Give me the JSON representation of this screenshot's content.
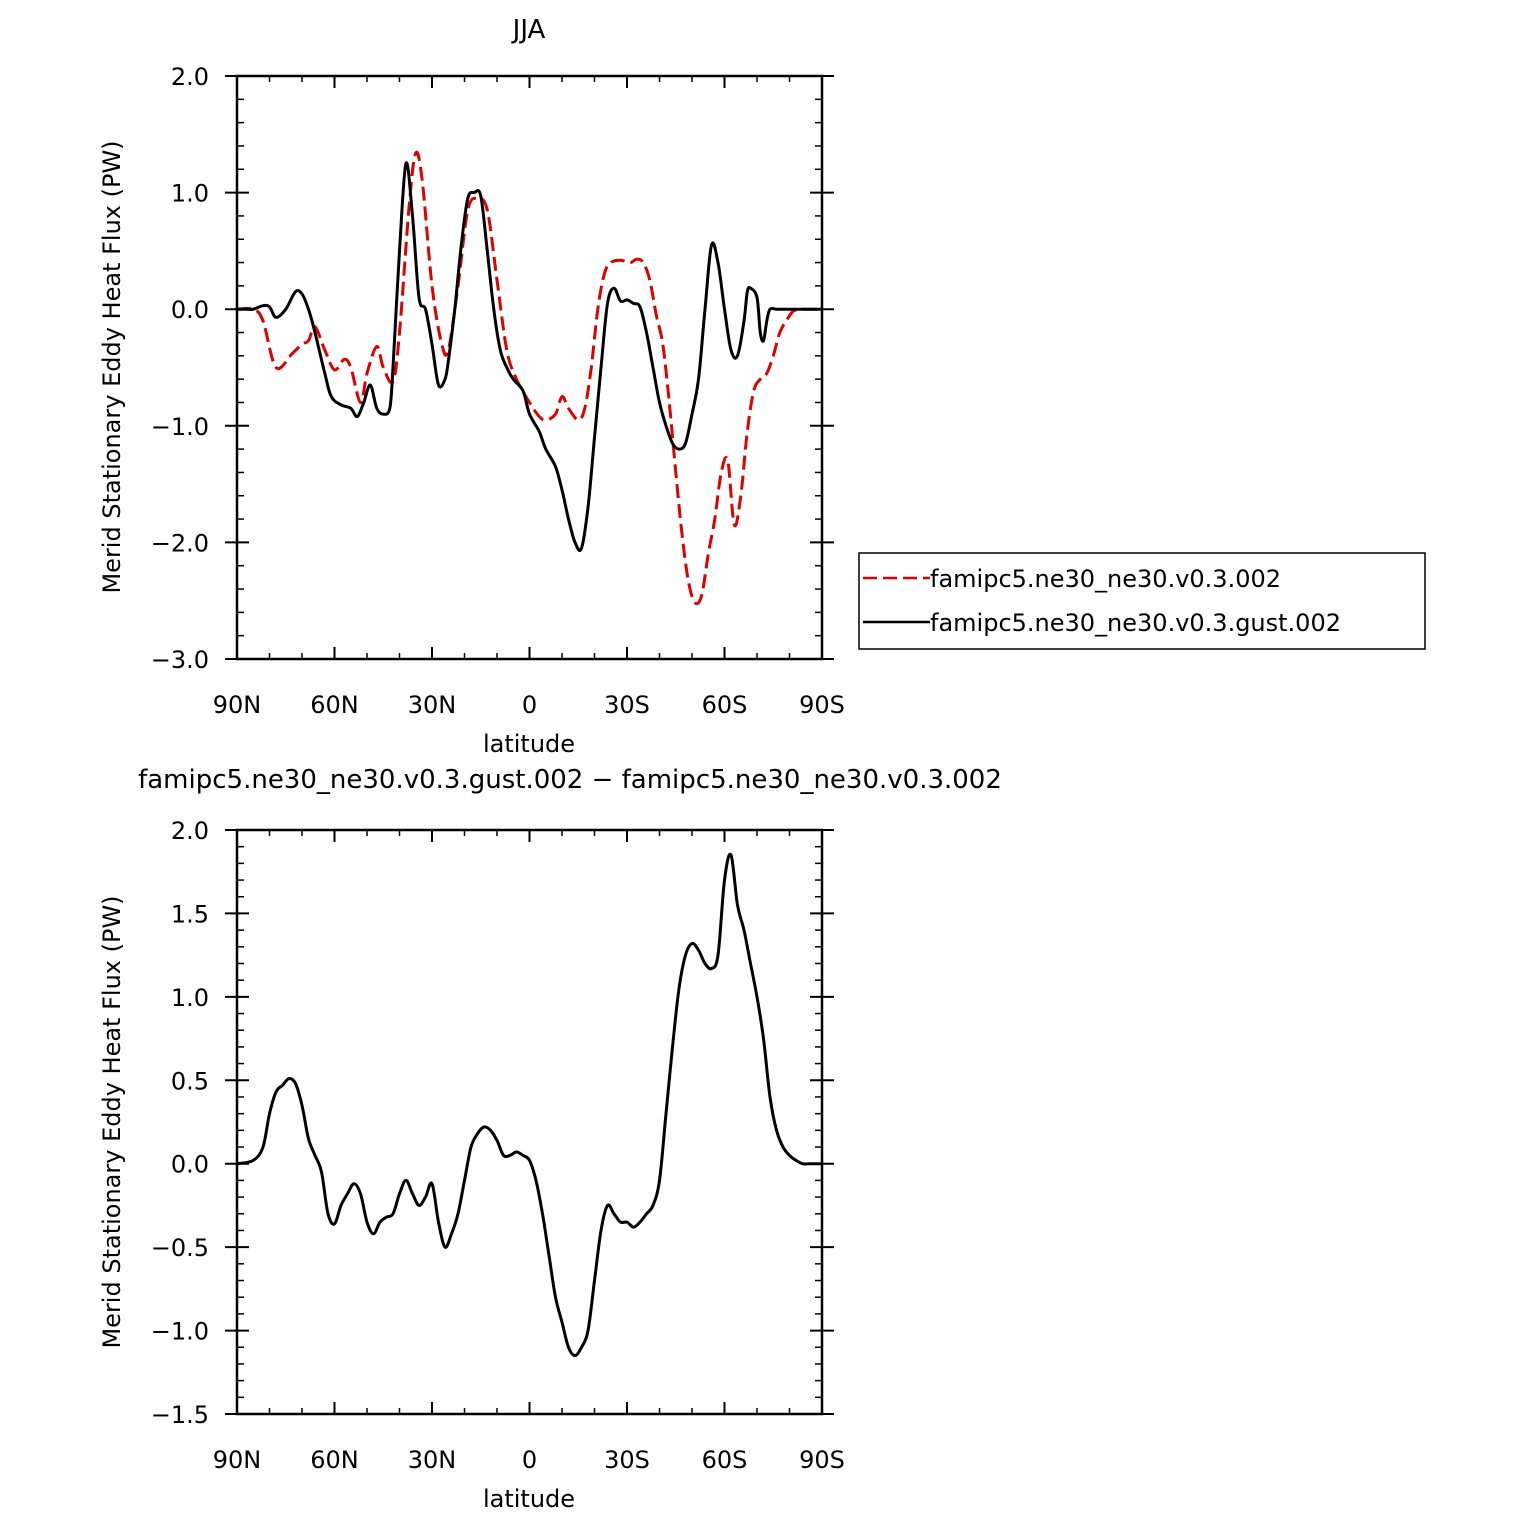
{
  "chart_data": [
    {
      "type": "line",
      "title": "JJA",
      "xlabel": "latitude",
      "ylabel": "Merid Stationary Eddy Heat Flux (PW)",
      "xlim": [
        90,
        -90
      ],
      "ylim": [
        -3.0,
        2.0
      ],
      "x_ticks": [
        90,
        60,
        30,
        0,
        -30,
        -60,
        -90
      ],
      "x_tick_labels": [
        "90N",
        "60N",
        "30N",
        "0",
        "30S",
        "60S",
        "90S"
      ],
      "y_ticks": [
        2.0,
        1.0,
        0.0,
        -1.0,
        -2.0,
        -3.0
      ],
      "y_tick_labels": [
        "2.0",
        "1.0",
        "0.0",
        "−1.0",
        "−2.0",
        "−3.0"
      ],
      "legend_position": "right",
      "series": [
        {
          "name": "famipc5.ne30_ne30.v0.3.002",
          "color": "#e00000",
          "dash": "dashed",
          "x": [
            90,
            85,
            82,
            78,
            73,
            70,
            68,
            66,
            63,
            60,
            57,
            55,
            52,
            50,
            47,
            45,
            42,
            40,
            37,
            35,
            33,
            30,
            27,
            25,
            22,
            19,
            16,
            13,
            10,
            7,
            4,
            0,
            -3,
            -5,
            -8,
            -10,
            -12,
            -15,
            -17,
            -19,
            -21,
            -23,
            -25,
            -28,
            -31,
            -33,
            -35,
            -37,
            -39,
            -41,
            -43,
            -45,
            -47,
            -49,
            -51,
            -53,
            -55,
            -57,
            -59,
            -61,
            -63,
            -65,
            -67,
            -69,
            -71,
            -73,
            -75,
            -77,
            -79,
            -81,
            -83,
            -85,
            -87,
            -90
          ],
          "y": [
            0.0,
            0.0,
            -0.1,
            -0.5,
            -0.38,
            -0.3,
            -0.27,
            -0.15,
            -0.35,
            -0.52,
            -0.43,
            -0.5,
            -0.8,
            -0.55,
            -0.32,
            -0.5,
            -0.62,
            -0.2,
            0.9,
            1.34,
            1.1,
            0.2,
            -0.3,
            -0.35,
            0.2,
            0.85,
            0.95,
            0.85,
            0.25,
            -0.35,
            -0.6,
            -0.8,
            -0.92,
            -0.95,
            -0.9,
            -0.75,
            -0.85,
            -0.95,
            -0.85,
            -0.5,
            0.0,
            0.3,
            0.4,
            0.42,
            0.4,
            0.43,
            0.4,
            0.25,
            -0.05,
            -0.3,
            -0.8,
            -1.4,
            -1.95,
            -2.35,
            -2.52,
            -2.45,
            -2.1,
            -1.8,
            -1.4,
            -1.3,
            -1.85,
            -1.6,
            -1.05,
            -0.7,
            -0.6,
            -0.55,
            -0.4,
            -0.2,
            -0.1,
            -0.02,
            0.0,
            0.0,
            0.0,
            0.0
          ]
        },
        {
          "name": "famipc5.ne30_ne30.v0.3.gust.002",
          "color": "#000000",
          "dash": "solid",
          "x": [
            90,
            87,
            85,
            82,
            80,
            78,
            75,
            72,
            70,
            68,
            66,
            63,
            61,
            58,
            55,
            53,
            51,
            49,
            47,
            45,
            43,
            42,
            40,
            38,
            36,
            34,
            32,
            30,
            28,
            26,
            25,
            23,
            21,
            19,
            17,
            15,
            13,
            11,
            9,
            7,
            5,
            2,
            0,
            -3,
            -5,
            -8,
            -10,
            -12,
            -14,
            -16,
            -18,
            -20,
            -22,
            -24,
            -26,
            -28,
            -30,
            -32,
            -34,
            -36,
            -38,
            -40,
            -42,
            -44,
            -46,
            -48,
            -50,
            -52,
            -54,
            -56,
            -58,
            -60,
            -62,
            -64,
            -66,
            -67,
            -68,
            -70,
            -71,
            -72,
            -73,
            -74,
            -76,
            -78,
            -80,
            -82,
            -84,
            -86,
            -88,
            -90
          ],
          "y": [
            0.0,
            0.0,
            0.0,
            0.03,
            0.02,
            -0.07,
            0.0,
            0.15,
            0.13,
            0.0,
            -0.2,
            -0.55,
            -0.75,
            -0.82,
            -0.85,
            -0.92,
            -0.8,
            -0.65,
            -0.85,
            -0.9,
            -0.85,
            -0.5,
            0.5,
            1.25,
            0.8,
            0.1,
            0.0,
            -0.3,
            -0.65,
            -0.6,
            -0.45,
            0.0,
            0.55,
            0.95,
            1.0,
            0.97,
            0.5,
            0.0,
            -0.35,
            -0.5,
            -0.6,
            -0.7,
            -0.9,
            -1.05,
            -1.2,
            -1.35,
            -1.55,
            -1.8,
            -2.0,
            -2.05,
            -1.7,
            -1.1,
            -0.5,
            0.05,
            0.18,
            0.07,
            0.08,
            0.05,
            0.02,
            -0.2,
            -0.5,
            -0.8,
            -1.0,
            -1.15,
            -1.2,
            -1.15,
            -0.9,
            -0.6,
            0.0,
            0.55,
            0.4,
            0.0,
            -0.35,
            -0.4,
            -0.1,
            0.15,
            0.18,
            0.1,
            -0.2,
            -0.27,
            -0.1,
            0.0,
            0.0,
            0.0,
            0.0,
            0.0,
            0.0,
            0.0,
            0.0,
            0.0
          ]
        }
      ]
    },
    {
      "type": "line",
      "title": "famipc5.ne30_ne30.v0.3.gust.002 − famipc5.ne30_ne30.v0.3.002",
      "xlabel": "latitude",
      "ylabel": "Merid Stationary Eddy Heat Flux (PW)",
      "xlim": [
        90,
        -90
      ],
      "ylim": [
        -1.5,
        2.0
      ],
      "x_ticks": [
        90,
        60,
        30,
        0,
        -30,
        -60,
        -90
      ],
      "x_tick_labels": [
        "90N",
        "60N",
        "30N",
        "0",
        "30S",
        "60S",
        "90S"
      ],
      "y_ticks": [
        2.0,
        1.5,
        1.0,
        0.5,
        0.0,
        -0.5,
        -1.0,
        -1.5
      ],
      "y_tick_labels": [
        "2.0",
        "1.5",
        "1.0",
        "0.5",
        "0.0",
        "−0.5",
        "−1.0",
        "−1.5"
      ],
      "series": [
        {
          "color": "#000000",
          "dash": "solid",
          "x": [
            90,
            85,
            82,
            80,
            78,
            76,
            74,
            72,
            70,
            68,
            66,
            64,
            62,
            60,
            58,
            56,
            54,
            52,
            50,
            48,
            46,
            44,
            42,
            40,
            38,
            36,
            34,
            32,
            30,
            28,
            26,
            24,
            22,
            20,
            18,
            16,
            14,
            12,
            10,
            8,
            6,
            4,
            2,
            0,
            -2,
            -4,
            -6,
            -8,
            -10,
            -12,
            -14,
            -16,
            -18,
            -20,
            -22,
            -24,
            -26,
            -28,
            -30,
            -32,
            -34,
            -36,
            -38,
            -40,
            -42,
            -44,
            -46,
            -48,
            -50,
            -52,
            -54,
            -56,
            -58,
            -60,
            -62,
            -64,
            -66,
            -68,
            -70,
            -72,
            -74,
            -76,
            -78,
            -80,
            -82,
            -84,
            -86,
            -88,
            -90
          ],
          "y": [
            0.0,
            0.02,
            0.1,
            0.3,
            0.43,
            0.47,
            0.51,
            0.48,
            0.35,
            0.15,
            0.05,
            -0.05,
            -0.3,
            -0.36,
            -0.25,
            -0.18,
            -0.12,
            -0.18,
            -0.35,
            -0.42,
            -0.35,
            -0.32,
            -0.3,
            -0.18,
            -0.1,
            -0.18,
            -0.25,
            -0.2,
            -0.12,
            -0.35,
            -0.5,
            -0.42,
            -0.3,
            -0.1,
            0.1,
            0.18,
            0.22,
            0.2,
            0.14,
            0.05,
            0.05,
            0.07,
            0.05,
            0.02,
            -0.1,
            -0.3,
            -0.55,
            -0.8,
            -0.95,
            -1.1,
            -1.15,
            -1.1,
            -1.0,
            -0.7,
            -0.4,
            -0.25,
            -0.3,
            -0.35,
            -0.35,
            -0.38,
            -0.35,
            -0.3,
            -0.25,
            -0.1,
            0.3,
            0.7,
            1.05,
            1.25,
            1.32,
            1.28,
            1.2,
            1.17,
            1.25,
            1.7,
            1.85,
            1.55,
            1.4,
            1.2,
            1.0,
            0.75,
            0.4,
            0.2,
            0.1,
            0.05,
            0.02,
            0.0,
            0.0,
            0.0,
            0.0
          ]
        }
      ]
    }
  ]
}
